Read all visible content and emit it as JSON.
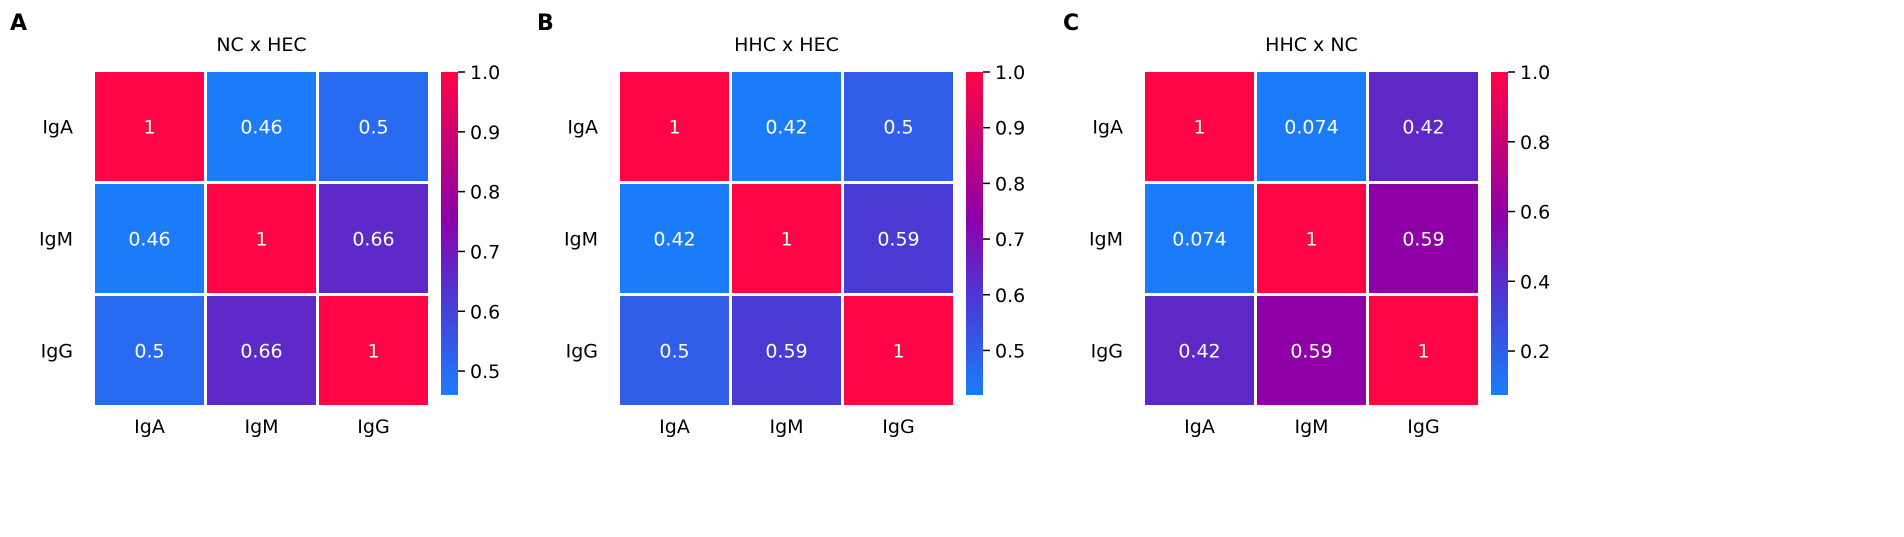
{
  "colormap": {
    "stops": [
      {
        "t": 0.0,
        "color": "#1a7cf9"
      },
      {
        "t": 0.3,
        "color": "#4b39d4"
      },
      {
        "t": 0.55,
        "color": "#8d00a8"
      },
      {
        "t": 1.0,
        "color": "#ff0545"
      }
    ],
    "cell_border": "#ffffff",
    "text_color": "#ffffff"
  },
  "chart_data": [
    {
      "type": "heatmap",
      "panel_label": "A",
      "title": "NC x HEC",
      "rows": [
        "IgA",
        "IgM",
        "IgG"
      ],
      "columns": [
        "IgA",
        "IgM",
        "IgG"
      ],
      "values": [
        [
          1,
          0.46,
          0.5
        ],
        [
          0.46,
          1,
          0.66
        ],
        [
          0.5,
          0.66,
          1
        ]
      ],
      "annotations": [
        [
          "1",
          "0.46",
          "0.5"
        ],
        [
          "0.46",
          "1",
          "0.66"
        ],
        [
          "0.5",
          "0.66",
          "1"
        ]
      ],
      "colorbar": {
        "min": 0.46,
        "max": 1.0,
        "ticks": [
          0.5,
          0.6,
          0.7,
          0.8,
          0.9,
          1.0
        ],
        "tick_labels": [
          "0.5",
          "0.6",
          "0.7",
          "0.8",
          "0.9",
          "1.0"
        ]
      }
    },
    {
      "type": "heatmap",
      "panel_label": "B",
      "title": "HHC x HEC",
      "rows": [
        "IgA",
        "IgM",
        "IgG"
      ],
      "columns": [
        "IgA",
        "IgM",
        "IgG"
      ],
      "values": [
        [
          1,
          0.42,
          0.5
        ],
        [
          0.42,
          1,
          0.59
        ],
        [
          0.5,
          0.59,
          1
        ]
      ],
      "annotations": [
        [
          "1",
          "0.42",
          "0.5"
        ],
        [
          "0.42",
          "1",
          "0.59"
        ],
        [
          "0.5",
          "0.59",
          "1"
        ]
      ],
      "colorbar": {
        "min": 0.42,
        "max": 1.0,
        "ticks": [
          0.5,
          0.6,
          0.7,
          0.8,
          0.9,
          1.0
        ],
        "tick_labels": [
          "0.5",
          "0.6",
          "0.7",
          "0.8",
          "0.9",
          "1.0"
        ]
      }
    },
    {
      "type": "heatmap",
      "panel_label": "C",
      "title": "HHC x NC",
      "rows": [
        "IgA",
        "IgM",
        "IgG"
      ],
      "columns": [
        "IgA",
        "IgM",
        "IgG"
      ],
      "values": [
        [
          1,
          0.074,
          0.42
        ],
        [
          0.074,
          1,
          0.59
        ],
        [
          0.42,
          0.59,
          1
        ]
      ],
      "annotations": [
        [
          "1",
          "0.074",
          "0.42"
        ],
        [
          "0.074",
          "1",
          "0.59"
        ],
        [
          "0.42",
          "0.59",
          "1"
        ]
      ],
      "colorbar": {
        "min": 0.074,
        "max": 1.0,
        "ticks": [
          0.2,
          0.4,
          0.6,
          0.8,
          1.0
        ],
        "tick_labels": [
          "0.2",
          "0.4",
          "0.6",
          "0.8",
          "1.0"
        ]
      }
    }
  ]
}
